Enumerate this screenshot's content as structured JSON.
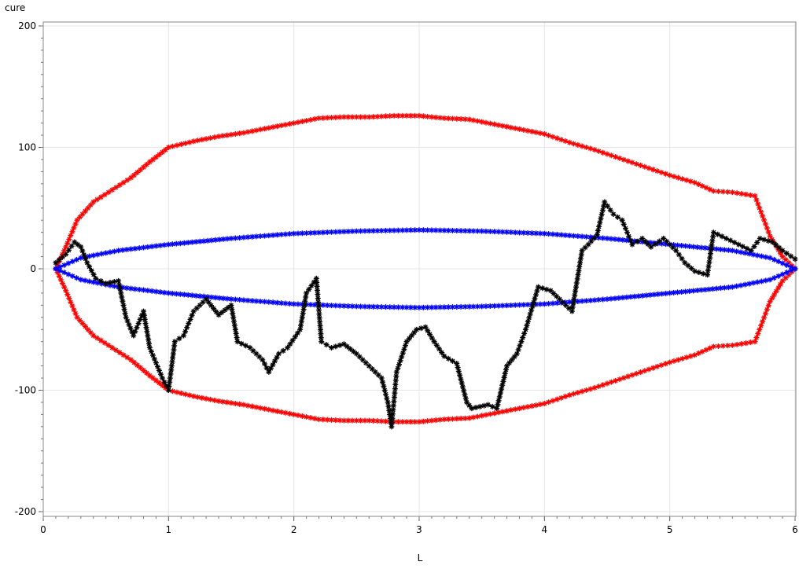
{
  "chart_data": {
    "type": "scatter",
    "title": "",
    "xlabel": "L",
    "ylabel": "cure",
    "xlim": [
      0,
      6
    ],
    "ylim": [
      -200,
      200
    ],
    "x_ticks": [
      0,
      1,
      2,
      3,
      4,
      5,
      6
    ],
    "x_tick_labels": [
      "0",
      "1",
      "2",
      "3",
      "4",
      "5",
      "6"
    ],
    "y_ticks": [
      -200,
      -100,
      0,
      100,
      200
    ],
    "y_tick_labels": [
      "-200",
      "-100",
      "0",
      "100",
      "200"
    ],
    "grid": true,
    "marker": "asterisk",
    "series": [
      {
        "color": "#ff0000",
        "connected": true,
        "x": [
          0.1,
          0.18,
          0.27,
          0.4,
          0.55,
          0.7,
          0.85,
          1.0,
          1.2,
          1.4,
          1.6,
          1.8,
          2.0,
          2.2,
          2.4,
          2.6,
          2.8,
          3.0,
          3.2,
          3.4,
          3.6,
          3.8,
          4.0,
          4.2,
          4.4,
          4.6,
          4.8,
          5.0,
          5.2,
          5.35,
          5.5,
          5.68,
          5.8,
          5.9,
          6.0
        ],
        "values": [
          0,
          18,
          40,
          55,
          65,
          75,
          88,
          100,
          105,
          109,
          112,
          116,
          120,
          124,
          125,
          125,
          126,
          126,
          124,
          123,
          119,
          115,
          111,
          104,
          98,
          91,
          84,
          77,
          71,
          64,
          63,
          60,
          27,
          10,
          0
        ]
      },
      {
        "color": "#ff0000",
        "connected": true,
        "x": [
          0.1,
          0.18,
          0.27,
          0.4,
          0.55,
          0.7,
          0.85,
          1.0,
          1.2,
          1.4,
          1.6,
          1.8,
          2.0,
          2.2,
          2.4,
          2.6,
          2.8,
          3.0,
          3.2,
          3.4,
          3.6,
          3.8,
          4.0,
          4.2,
          4.4,
          4.6,
          4.8,
          5.0,
          5.2,
          5.35,
          5.5,
          5.68,
          5.8,
          5.9,
          6.0
        ],
        "values": [
          0,
          -18,
          -40,
          -55,
          -65,
          -75,
          -88,
          -100,
          -105,
          -109,
          -112,
          -116,
          -120,
          -124,
          -125,
          -125,
          -126,
          -126,
          -124,
          -123,
          -119,
          -115,
          -111,
          -104,
          -98,
          -91,
          -84,
          -77,
          -71,
          -64,
          -63,
          -60,
          -27,
          -10,
          0
        ]
      },
      {
        "color": "#0000ff",
        "connected": true,
        "x": [
          0.1,
          0.3,
          0.6,
          1.0,
          1.5,
          2.0,
          2.5,
          3.0,
          3.5,
          4.0,
          4.5,
          5.0,
          5.5,
          5.8,
          6.0
        ],
        "values": [
          0,
          9,
          15,
          20,
          25,
          29,
          31,
          32,
          31,
          29,
          25,
          20,
          15,
          9,
          0
        ]
      },
      {
        "color": "#0000ff",
        "connected": true,
        "x": [
          0.1,
          0.3,
          0.6,
          1.0,
          1.5,
          2.0,
          2.5,
          3.0,
          3.5,
          4.0,
          4.5,
          5.0,
          5.5,
          5.8,
          6.0
        ],
        "values": [
          0,
          -9,
          -15,
          -20,
          -25,
          -29,
          -31,
          -32,
          -31,
          -29,
          -25,
          -20,
          -15,
          -9,
          0
        ]
      },
      {
        "color": "#000000",
        "connected": true,
        "x": [
          0.1,
          0.18,
          0.25,
          0.3,
          0.35,
          0.42,
          0.5,
          0.6,
          0.66,
          0.72,
          0.8,
          0.85,
          0.95,
          1.0,
          1.05,
          1.12,
          1.2,
          1.3,
          1.4,
          1.5,
          1.55,
          1.65,
          1.75,
          1.8,
          1.88,
          1.95,
          2.05,
          2.1,
          2.18,
          2.22,
          2.3,
          2.4,
          2.5,
          2.6,
          2.7,
          2.75,
          2.78,
          2.82,
          2.9,
          2.98,
          3.05,
          3.12,
          3.2,
          3.3,
          3.38,
          3.42,
          3.55,
          3.62,
          3.7,
          3.78,
          3.85,
          3.95,
          4.05,
          4.12,
          4.22,
          4.3,
          4.35,
          4.42,
          4.48,
          4.55,
          4.62,
          4.7,
          4.78,
          4.85,
          4.95,
          5.05,
          5.12,
          5.2,
          5.3,
          5.35,
          5.45,
          5.55,
          5.65,
          5.72,
          5.82,
          5.9,
          6.0
        ],
        "values": [
          5,
          12,
          22,
          18,
          5,
          -8,
          -12,
          -10,
          -40,
          -55,
          -35,
          -65,
          -90,
          -100,
          -60,
          -55,
          -35,
          -25,
          -38,
          -30,
          -60,
          -65,
          -75,
          -85,
          -70,
          -65,
          -50,
          -20,
          -8,
          -60,
          -65,
          -62,
          -70,
          -80,
          -90,
          -110,
          -130,
          -85,
          -60,
          -50,
          -48,
          -60,
          -72,
          -78,
          -110,
          -115,
          -112,
          -115,
          -80,
          -70,
          -50,
          -15,
          -18,
          -25,
          -35,
          15,
          20,
          28,
          55,
          45,
          40,
          20,
          25,
          18,
          25,
          15,
          5,
          -2,
          -5,
          30,
          25,
          20,
          15,
          25,
          22,
          15,
          8
        ]
      }
    ]
  }
}
